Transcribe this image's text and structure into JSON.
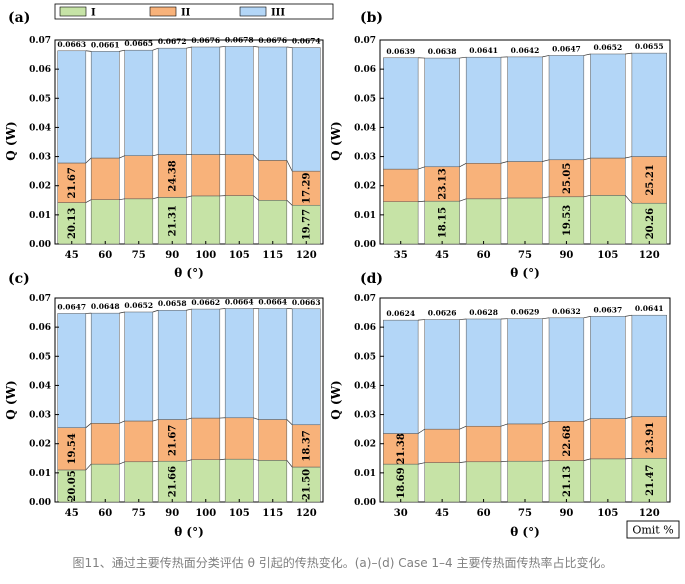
{
  "caption": "图11、通过主要传热面分类评估 θ 引起的传热变化。(a)–(d) Case 1–4 主要传热面传热率占比变化。",
  "note_box": "Omit %",
  "colors": {
    "I": "#c6e3a6",
    "II": "#f8b27a",
    "III": "#b3d6f7"
  },
  "legend": [
    "I",
    "II",
    "III"
  ],
  "chart_data": [
    {
      "type": "bar",
      "stacked": true,
      "panel": "(a)",
      "xlabel": "θ (°)",
      "ylabel": "Q (W)",
      "ylim": [
        0,
        0.07
      ],
      "yticks": [
        "0.00",
        "0.01",
        "0.02",
        "0.03",
        "0.04",
        "0.05",
        "0.06",
        "0.07"
      ],
      "categories": [
        "45",
        "60",
        "75",
        "90",
        "100",
        "105",
        "115",
        "120"
      ],
      "series": [
        {
          "name": "I",
          "values": [
            0.0142,
            0.0152,
            0.0155,
            0.016,
            0.0165,
            0.0166,
            0.015,
            0.0133
          ]
        },
        {
          "name": "II",
          "values": [
            0.0136,
            0.0143,
            0.0148,
            0.0147,
            0.0142,
            0.0141,
            0.0137,
            0.0117
          ]
        },
        {
          "name": "III",
          "values": [
            0.0385,
            0.0366,
            0.0362,
            0.0365,
            0.0369,
            0.0371,
            0.0389,
            0.0424
          ]
        }
      ],
      "totals": [
        "0.0663",
        "0.0661",
        "0.0665",
        "0.0672",
        "0.0676",
        "0.0678",
        "0.0676",
        "0.0674"
      ],
      "segment_labels": [
        {
          "cat": 0,
          "seg": 0,
          "text": "20.13"
        },
        {
          "cat": 0,
          "seg": 1,
          "text": "21.67"
        },
        {
          "cat": 3,
          "seg": 0,
          "text": "21.31"
        },
        {
          "cat": 3,
          "seg": 1,
          "text": "24.38"
        },
        {
          "cat": 7,
          "seg": 0,
          "text": "19.77"
        },
        {
          "cat": 7,
          "seg": 1,
          "text": "17.29"
        }
      ]
    },
    {
      "type": "bar",
      "stacked": true,
      "panel": "(b)",
      "xlabel": "θ (°)",
      "ylabel": "Q (W)",
      "ylim": [
        0,
        0.07
      ],
      "yticks": [
        "0.00",
        "0.01",
        "0.02",
        "0.03",
        "0.04",
        "0.05",
        "0.06",
        "0.07"
      ],
      "categories": [
        "35",
        "45",
        "60",
        "75",
        "90",
        "105",
        "120"
      ],
      "series": [
        {
          "name": "I",
          "values": [
            0.0145,
            0.0147,
            0.0155,
            0.0158,
            0.0162,
            0.0167,
            0.014
          ]
        },
        {
          "name": "II",
          "values": [
            0.0112,
            0.0118,
            0.0122,
            0.0125,
            0.0127,
            0.0128,
            0.016
          ]
        },
        {
          "name": "III",
          "values": [
            0.0382,
            0.0373,
            0.0364,
            0.0359,
            0.0358,
            0.0357,
            0.0355
          ]
        }
      ],
      "totals": [
        "0.0639",
        "0.0638",
        "0.0641",
        "0.0642",
        "0.0647",
        "0.0652",
        "0.0655"
      ],
      "segment_labels": [
        {
          "cat": 1,
          "seg": 0,
          "text": "18.15"
        },
        {
          "cat": 1,
          "seg": 1,
          "text": "23.13"
        },
        {
          "cat": 4,
          "seg": 0,
          "text": "19.53"
        },
        {
          "cat": 4,
          "seg": 1,
          "text": "25.05"
        },
        {
          "cat": 6,
          "seg": 0,
          "text": "20.26"
        },
        {
          "cat": 6,
          "seg": 1,
          "text": "25.21"
        }
      ]
    },
    {
      "type": "bar",
      "stacked": true,
      "panel": "(c)",
      "xlabel": "θ (°)",
      "ylabel": "Q (W)",
      "ylim": [
        0,
        0.07
      ],
      "yticks": [
        "0.00",
        "0.01",
        "0.02",
        "0.03",
        "0.04",
        "0.05",
        "0.06",
        "0.07"
      ],
      "categories": [
        "45",
        "60",
        "75",
        "90",
        "100",
        "105",
        "115",
        "120"
      ],
      "series": [
        {
          "name": "I",
          "values": [
            0.011,
            0.013,
            0.0138,
            0.014,
            0.0145,
            0.0147,
            0.0143,
            0.012
          ]
        },
        {
          "name": "II",
          "values": [
            0.0145,
            0.014,
            0.014,
            0.0143,
            0.0143,
            0.0142,
            0.014,
            0.0145
          ]
        },
        {
          "name": "III",
          "values": [
            0.0392,
            0.0378,
            0.0374,
            0.0375,
            0.0374,
            0.0375,
            0.0381,
            0.0398
          ]
        }
      ],
      "totals": [
        "0.0647",
        "0.0648",
        "0.0652",
        "0.0658",
        "0.0662",
        "0.0664",
        "0.0664",
        "0.0663"
      ],
      "segment_labels": [
        {
          "cat": 0,
          "seg": 0,
          "text": "20.05"
        },
        {
          "cat": 0,
          "seg": 1,
          "text": "19.54"
        },
        {
          "cat": 3,
          "seg": 0,
          "text": "21.66"
        },
        {
          "cat": 3,
          "seg": 1,
          "text": "21.67"
        },
        {
          "cat": 7,
          "seg": 0,
          "text": "21.50"
        },
        {
          "cat": 7,
          "seg": 1,
          "text": "18.37"
        }
      ]
    },
    {
      "type": "bar",
      "stacked": true,
      "panel": "(d)",
      "xlabel": "θ (°)",
      "ylabel": "Q (W)",
      "ylim": [
        0,
        0.07
      ],
      "yticks": [
        "0.00",
        "0.01",
        "0.02",
        "0.03",
        "0.04",
        "0.05",
        "0.06",
        "0.07"
      ],
      "categories": [
        "30",
        "45",
        "60",
        "75",
        "90",
        "105",
        "120"
      ],
      "series": [
        {
          "name": "I",
          "values": [
            0.013,
            0.0135,
            0.0138,
            0.014,
            0.0142,
            0.0148,
            0.015
          ]
        },
        {
          "name": "II",
          "values": [
            0.0105,
            0.0115,
            0.0122,
            0.0128,
            0.0135,
            0.0138,
            0.0143
          ]
        },
        {
          "name": "III",
          "values": [
            0.0389,
            0.0376,
            0.0368,
            0.0361,
            0.0355,
            0.0351,
            0.0348
          ]
        }
      ],
      "totals": [
        "0.0624",
        "0.0626",
        "0.0628",
        "0.0629",
        "0.0632",
        "0.0637",
        "0.0641"
      ],
      "segment_labels": [
        {
          "cat": 0,
          "seg": 0,
          "text": "18.69"
        },
        {
          "cat": 0,
          "seg": 1,
          "text": "21.38"
        },
        {
          "cat": 4,
          "seg": 0,
          "text": "21.13"
        },
        {
          "cat": 4,
          "seg": 1,
          "text": "22.68"
        },
        {
          "cat": 6,
          "seg": 0,
          "text": "21.47"
        },
        {
          "cat": 6,
          "seg": 1,
          "text": "23.91"
        }
      ]
    }
  ]
}
